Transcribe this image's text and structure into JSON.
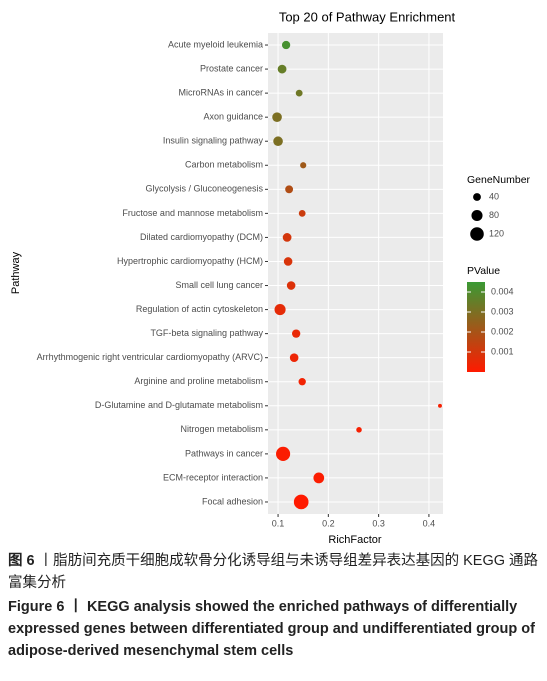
{
  "chart_data": {
    "type": "dotplot",
    "title": "Top 20 of Pathway Enrichment",
    "xlabel": "RichFactor",
    "ylabel": "Pathway",
    "categories": [
      "Acute myeloid leukemia",
      "Prostate cancer",
      "MicroRNAs in cancer",
      "Axon guidance",
      "Insulin signaling pathway",
      "Carbon metabolism",
      "Glycolysis / Gluconeogenesis",
      "Fructose and mannose metabolism",
      "Dilated cardiomyopathy (DCM)",
      "Hypertrophic cardiomyopathy (HCM)",
      "Small cell lung cancer",
      "Regulation of actin cytoskeleton",
      "TGF-beta signaling pathway",
      "Arrhythmogenic right ventricular cardiomyopathy (ARVC)",
      "Arginine and proline metabolism",
      "D-Glutamine and D-glutamate metabolism",
      "Nitrogen metabolism",
      "Pathways in cancer",
      "ECM-receptor interaction",
      "Focal adhesion"
    ],
    "values": [
      0.116,
      0.108,
      0.142,
      0.098,
      0.1,
      0.15,
      0.122,
      0.148,
      0.118,
      0.12,
      0.126,
      0.104,
      0.136,
      0.132,
      0.148,
      0.422,
      0.261,
      0.11,
      0.181,
      0.146
    ],
    "sizes": [
      45,
      50,
      30,
      60,
      60,
      25,
      40,
      30,
      50,
      48,
      48,
      80,
      45,
      48,
      35,
      10,
      20,
      130,
      75,
      140
    ],
    "pvalues": [
      0.0042,
      0.0035,
      0.0033,
      0.003,
      0.003,
      0.0022,
      0.0018,
      0.0012,
      0.001,
      0.0009,
      0.0008,
      0.0006,
      0.0005,
      0.0004,
      0.0003,
      0.0002,
      0.0002,
      0.0001,
      0.0001,
      1e-05
    ],
    "xlim": [
      0.08,
      0.428
    ],
    "xticks": [
      0.1,
      0.2,
      0.3,
      0.4
    ],
    "grid": true,
    "size_legend_title": "GeneNumber",
    "size_legend": [
      40,
      80,
      120
    ],
    "color_legend_title": "PValue",
    "clim": [
      0,
      0.0045
    ],
    "cticks": [
      0.001,
      0.002,
      0.003,
      0.004
    ],
    "color_low": "#ff1a00",
    "color_high": "#3a9a34"
  },
  "caption": {
    "cn_label": "图 6",
    "cn_text": "丨脂肪间充质干细胞成软骨分化诱导组与未诱导组差异表达基因的 KEGG 通路富集分析",
    "en_label": "Figure 6",
    "en_text": "丨 KEGG analysis showed the enriched pathways of differentially expressed genes between differentiated group and undifferentiated group of adipose-derived mesenchymal stem cells"
  }
}
